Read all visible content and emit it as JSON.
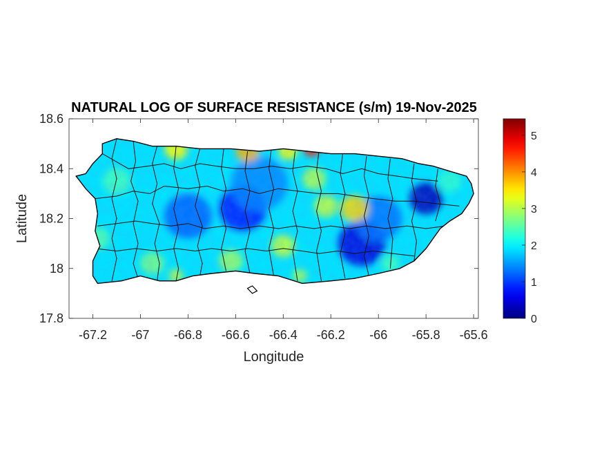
{
  "chart_data": {
    "type": "heatmap",
    "title": "NATURAL LOG OF SURFACE RESISTANCE (s/m) 19-Nov-2025",
    "xlabel": "Longitude",
    "ylabel": "Latitude",
    "xlim": [
      -67.3,
      -65.58
    ],
    "ylim": [
      17.8,
      18.6
    ],
    "xticks": [
      -67.2,
      -67,
      -66.8,
      -66.6,
      -66.4,
      -66.2,
      -66,
      -65.8,
      -65.6
    ],
    "xtick_labels": [
      "-67.2",
      "-67",
      "-66.8",
      "-66.6",
      "-66.4",
      "-66.2",
      "-66",
      "-65.8",
      "-65.6"
    ],
    "yticks": [
      17.8,
      18,
      18.2,
      18.4,
      18.6
    ],
    "ytick_labels": [
      "17.8",
      "18",
      "18.2",
      "18.4",
      "18.6"
    ],
    "colorbar": {
      "colormap": "jet",
      "range": [
        0,
        5.45
      ],
      "ticks": [
        0,
        1,
        2,
        3,
        4,
        5
      ],
      "tick_labels": [
        "0",
        "1",
        "2",
        "3",
        "4",
        "5"
      ]
    },
    "grid": false,
    "background_value": 1.9,
    "field_features": [
      {
        "lon": -65.8,
        "lat": 18.28,
        "value": 0.3,
        "radius": 0.07
      },
      {
        "lon": -66.07,
        "lat": 18.1,
        "value": 0.5,
        "radius": 0.1
      },
      {
        "lon": -66.57,
        "lat": 18.24,
        "value": 0.8,
        "radius": 0.1
      },
      {
        "lon": -66.8,
        "lat": 18.21,
        "value": 1.2,
        "radius": 0.1
      },
      {
        "lon": -66.5,
        "lat": 18.34,
        "value": 1.4,
        "radius": 0.12
      },
      {
        "lon": -66.0,
        "lat": 18.2,
        "value": 1.3,
        "radius": 0.1
      },
      {
        "lon": -66.28,
        "lat": 18.48,
        "value": 4.6,
        "radius": 0.035
      },
      {
        "lon": -66.55,
        "lat": 18.47,
        "value": 3.8,
        "radius": 0.05
      },
      {
        "lon": -66.85,
        "lat": 18.48,
        "value": 3.4,
        "radius": 0.05
      },
      {
        "lon": -66.38,
        "lat": 18.47,
        "value": 3.4,
        "radius": 0.04
      },
      {
        "lon": -66.1,
        "lat": 18.24,
        "value": 3.6,
        "radius": 0.06
      },
      {
        "lon": -66.22,
        "lat": 18.25,
        "value": 3.1,
        "radius": 0.05
      },
      {
        "lon": -66.27,
        "lat": 18.36,
        "value": 3.0,
        "radius": 0.05
      },
      {
        "lon": -66.4,
        "lat": 18.09,
        "value": 3.1,
        "radius": 0.05
      },
      {
        "lon": -66.62,
        "lat": 18.03,
        "value": 2.9,
        "radius": 0.05
      },
      {
        "lon": -66.95,
        "lat": 18.02,
        "value": 2.7,
        "radius": 0.05
      },
      {
        "lon": -67.18,
        "lat": 18.12,
        "value": 2.5,
        "radius": 0.05
      },
      {
        "lon": -67.1,
        "lat": 18.35,
        "value": 2.4,
        "radius": 0.06
      },
      {
        "lon": -66.33,
        "lat": 17.97,
        "value": 3.0,
        "radius": 0.03
      },
      {
        "lon": -65.95,
        "lat": 18.02,
        "value": 2.4,
        "radius": 0.04
      },
      {
        "lon": -66.85,
        "lat": 17.97,
        "value": 3.1,
        "radius": 0.03
      },
      {
        "lon": -65.7,
        "lat": 18.35,
        "value": 2.3,
        "radius": 0.05
      }
    ],
    "island_outline": [
      [
        -67.27,
        18.37
      ],
      [
        -67.23,
        18.38
      ],
      [
        -67.2,
        18.42
      ],
      [
        -67.16,
        18.46
      ],
      [
        -67.16,
        18.5
      ],
      [
        -67.1,
        18.52
      ],
      [
        -67.03,
        18.51
      ],
      [
        -66.95,
        18.49
      ],
      [
        -66.85,
        18.49
      ],
      [
        -66.75,
        18.48
      ],
      [
        -66.62,
        18.48
      ],
      [
        -66.5,
        18.47
      ],
      [
        -66.4,
        18.48
      ],
      [
        -66.3,
        18.47
      ],
      [
        -66.2,
        18.46
      ],
      [
        -66.1,
        18.46
      ],
      [
        -66.0,
        18.45
      ],
      [
        -65.9,
        18.44
      ],
      [
        -65.83,
        18.42
      ],
      [
        -65.77,
        18.41
      ],
      [
        -65.7,
        18.39
      ],
      [
        -65.63,
        18.37
      ],
      [
        -65.61,
        18.34
      ],
      [
        -65.6,
        18.3
      ],
      [
        -65.62,
        18.26
      ],
      [
        -65.65,
        18.22
      ],
      [
        -65.7,
        18.19
      ],
      [
        -65.74,
        18.16
      ],
      [
        -65.77,
        18.12
      ],
      [
        -65.8,
        18.08
      ],
      [
        -65.85,
        18.03
      ],
      [
        -65.91,
        18.0
      ],
      [
        -66.0,
        17.98
      ],
      [
        -66.1,
        17.96
      ],
      [
        -66.2,
        17.95
      ],
      [
        -66.32,
        17.94
      ],
      [
        -66.42,
        17.97
      ],
      [
        -66.52,
        17.98
      ],
      [
        -66.6,
        17.99
      ],
      [
        -66.7,
        17.98
      ],
      [
        -66.78,
        17.97
      ],
      [
        -66.85,
        17.95
      ],
      [
        -66.92,
        17.95
      ],
      [
        -67.0,
        17.97
      ],
      [
        -67.08,
        17.95
      ],
      [
        -67.18,
        17.94
      ],
      [
        -67.2,
        17.97
      ],
      [
        -67.2,
        18.03
      ],
      [
        -67.17,
        18.09
      ],
      [
        -67.19,
        18.15
      ],
      [
        -67.18,
        18.22
      ],
      [
        -67.19,
        18.28
      ],
      [
        -67.23,
        18.32
      ],
      [
        -67.27,
        18.37
      ]
    ],
    "islet_outline": [
      [
        -66.55,
        17.92
      ],
      [
        -66.53,
        17.9
      ],
      [
        -66.51,
        17.91
      ],
      [
        -66.53,
        17.93
      ],
      [
        -66.55,
        17.92
      ]
    ],
    "boundary_lines": [
      [
        [
          -67.16,
          18.46
        ],
        [
          -67.05,
          18.4
        ],
        [
          -66.97,
          18.41
        ],
        [
          -66.9,
          18.42
        ],
        [
          -66.83,
          18.4
        ],
        [
          -66.75,
          18.42
        ],
        [
          -66.68,
          18.41
        ],
        [
          -66.6,
          18.4
        ],
        [
          -66.52,
          18.4
        ],
        [
          -66.45,
          18.41
        ],
        [
          -66.37,
          18.4
        ],
        [
          -66.3,
          18.41
        ],
        [
          -66.22,
          18.4
        ],
        [
          -66.15,
          18.38
        ],
        [
          -66.07,
          18.4
        ],
        [
          -66.0,
          18.38
        ],
        [
          -65.92,
          18.37
        ],
        [
          -65.85,
          18.36
        ],
        [
          -65.75,
          18.35
        ]
      ],
      [
        [
          -67.19,
          18.28
        ],
        [
          -67.1,
          18.29
        ],
        [
          -67.03,
          18.31
        ],
        [
          -66.96,
          18.3
        ],
        [
          -66.9,
          18.33
        ],
        [
          -66.8,
          18.32
        ],
        [
          -66.72,
          18.33
        ],
        [
          -66.65,
          18.31
        ],
        [
          -66.57,
          18.32
        ],
        [
          -66.5,
          18.3
        ],
        [
          -66.42,
          18.32
        ],
        [
          -66.34,
          18.31
        ],
        [
          -66.25,
          18.3
        ],
        [
          -66.17,
          18.3
        ],
        [
          -66.1,
          18.29
        ],
        [
          -66.02,
          18.28
        ],
        [
          -65.93,
          18.27
        ],
        [
          -65.85,
          18.27
        ],
        [
          -65.76,
          18.26
        ],
        [
          -65.66,
          18.25
        ]
      ],
      [
        [
          -67.18,
          18.17
        ],
        [
          -67.1,
          18.18
        ],
        [
          -67.02,
          18.19
        ],
        [
          -66.95,
          18.18
        ],
        [
          -66.87,
          18.17
        ],
        [
          -66.8,
          18.18
        ],
        [
          -66.73,
          18.16
        ],
        [
          -66.65,
          18.17
        ],
        [
          -66.58,
          18.16
        ],
        [
          -66.5,
          18.17
        ],
        [
          -66.42,
          18.16
        ],
        [
          -66.35,
          18.17
        ],
        [
          -66.27,
          18.16
        ],
        [
          -66.2,
          18.17
        ],
        [
          -66.12,
          18.16
        ],
        [
          -66.05,
          18.17
        ],
        [
          -65.97,
          18.16
        ],
        [
          -65.88,
          18.17
        ],
        [
          -65.8,
          18.16
        ],
        [
          -65.72,
          18.17
        ]
      ],
      [
        [
          -67.19,
          18.08
        ],
        [
          -67.1,
          18.07
        ],
        [
          -67.02,
          18.08
        ],
        [
          -66.93,
          18.07
        ],
        [
          -66.85,
          18.08
        ],
        [
          -66.77,
          18.07
        ],
        [
          -66.7,
          18.08
        ],
        [
          -66.62,
          18.07
        ],
        [
          -66.55,
          18.08
        ],
        [
          -66.47,
          18.07
        ],
        [
          -66.4,
          18.08
        ],
        [
          -66.32,
          18.07
        ],
        [
          -66.25,
          18.06
        ],
        [
          -66.17,
          18.07
        ],
        [
          -66.1,
          18.06
        ],
        [
          -66.02,
          18.07
        ],
        [
          -65.94,
          18.06
        ],
        [
          -65.85,
          18.05
        ]
      ],
      [
        [
          -67.1,
          18.52
        ],
        [
          -67.12,
          18.44
        ],
        [
          -67.1,
          18.36
        ],
        [
          -67.12,
          18.28
        ],
        [
          -67.1,
          18.2
        ],
        [
          -67.12,
          18.12
        ],
        [
          -67.1,
          18.04
        ],
        [
          -67.12,
          17.95
        ]
      ],
      [
        [
          -67.03,
          18.51
        ],
        [
          -67.02,
          18.43
        ],
        [
          -67.04,
          18.35
        ],
        [
          -67.01,
          18.27
        ],
        [
          -67.03,
          18.18
        ],
        [
          -67.01,
          18.1
        ],
        [
          -67.03,
          18.02
        ],
        [
          -67.01,
          17.96
        ]
      ],
      [
        [
          -66.93,
          18.49
        ],
        [
          -66.95,
          18.42
        ],
        [
          -66.93,
          18.34
        ],
        [
          -66.95,
          18.26
        ],
        [
          -66.92,
          18.18
        ],
        [
          -66.94,
          18.1
        ],
        [
          -66.92,
          18.02
        ],
        [
          -66.93,
          17.95
        ]
      ],
      [
        [
          -66.85,
          18.49
        ],
        [
          -66.86,
          18.4
        ],
        [
          -66.84,
          18.32
        ],
        [
          -66.86,
          18.24
        ],
        [
          -66.84,
          18.16
        ],
        [
          -66.86,
          18.08
        ],
        [
          -66.84,
          18.0
        ],
        [
          -66.85,
          17.95
        ]
      ],
      [
        [
          -66.75,
          18.48
        ],
        [
          -66.77,
          18.41
        ],
        [
          -66.75,
          18.33
        ],
        [
          -66.77,
          18.25
        ],
        [
          -66.74,
          18.17
        ],
        [
          -66.76,
          18.09
        ],
        [
          -66.74,
          18.02
        ],
        [
          -66.75,
          17.97
        ]
      ],
      [
        [
          -66.65,
          18.48
        ],
        [
          -66.66,
          18.4
        ],
        [
          -66.64,
          18.32
        ],
        [
          -66.66,
          18.24
        ],
        [
          -66.64,
          18.16
        ],
        [
          -66.66,
          18.08
        ],
        [
          -66.64,
          17.99
        ]
      ],
      [
        [
          -66.55,
          18.47
        ],
        [
          -66.56,
          18.39
        ],
        [
          -66.54,
          18.31
        ],
        [
          -66.56,
          18.23
        ],
        [
          -66.54,
          18.15
        ],
        [
          -66.56,
          18.07
        ],
        [
          -66.54,
          17.98
        ]
      ],
      [
        [
          -66.45,
          18.48
        ],
        [
          -66.46,
          18.4
        ],
        [
          -66.44,
          18.32
        ],
        [
          -66.46,
          18.24
        ],
        [
          -66.44,
          18.16
        ],
        [
          -66.46,
          18.08
        ],
        [
          -66.44,
          17.97
        ]
      ],
      [
        [
          -66.35,
          18.47
        ],
        [
          -66.36,
          18.39
        ],
        [
          -66.34,
          18.31
        ],
        [
          -66.36,
          18.23
        ],
        [
          -66.34,
          18.15
        ],
        [
          -66.36,
          18.07
        ],
        [
          -66.34,
          17.95
        ]
      ],
      [
        [
          -66.25,
          18.47
        ],
        [
          -66.26,
          18.39
        ],
        [
          -66.24,
          18.31
        ],
        [
          -66.26,
          18.23
        ],
        [
          -66.24,
          18.15
        ],
        [
          -66.26,
          18.07
        ],
        [
          -66.24,
          17.95
        ]
      ],
      [
        [
          -66.15,
          18.46
        ],
        [
          -66.16,
          18.38
        ],
        [
          -66.14,
          18.3
        ],
        [
          -66.16,
          18.22
        ],
        [
          -66.14,
          18.14
        ],
        [
          -66.16,
          18.06
        ],
        [
          -66.14,
          17.96
        ]
      ],
      [
        [
          -66.05,
          18.45
        ],
        [
          -66.06,
          18.37
        ],
        [
          -66.04,
          18.29
        ],
        [
          -66.06,
          18.21
        ],
        [
          -66.04,
          18.13
        ],
        [
          -66.06,
          18.05
        ],
        [
          -66.04,
          17.97
        ]
      ],
      [
        [
          -65.95,
          18.44
        ],
        [
          -65.96,
          18.36
        ],
        [
          -65.94,
          18.28
        ],
        [
          -65.96,
          18.2
        ],
        [
          -65.94,
          18.12
        ],
        [
          -65.95,
          18.0
        ]
      ],
      [
        [
          -65.85,
          18.42
        ],
        [
          -65.86,
          18.35
        ],
        [
          -65.84,
          18.27
        ],
        [
          -65.86,
          18.19
        ],
        [
          -65.84,
          18.11
        ],
        [
          -65.85,
          18.03
        ]
      ],
      [
        [
          -65.75,
          18.4
        ],
        [
          -65.76,
          18.33
        ],
        [
          -65.74,
          18.26
        ],
        [
          -65.76,
          18.19
        ]
      ]
    ]
  }
}
